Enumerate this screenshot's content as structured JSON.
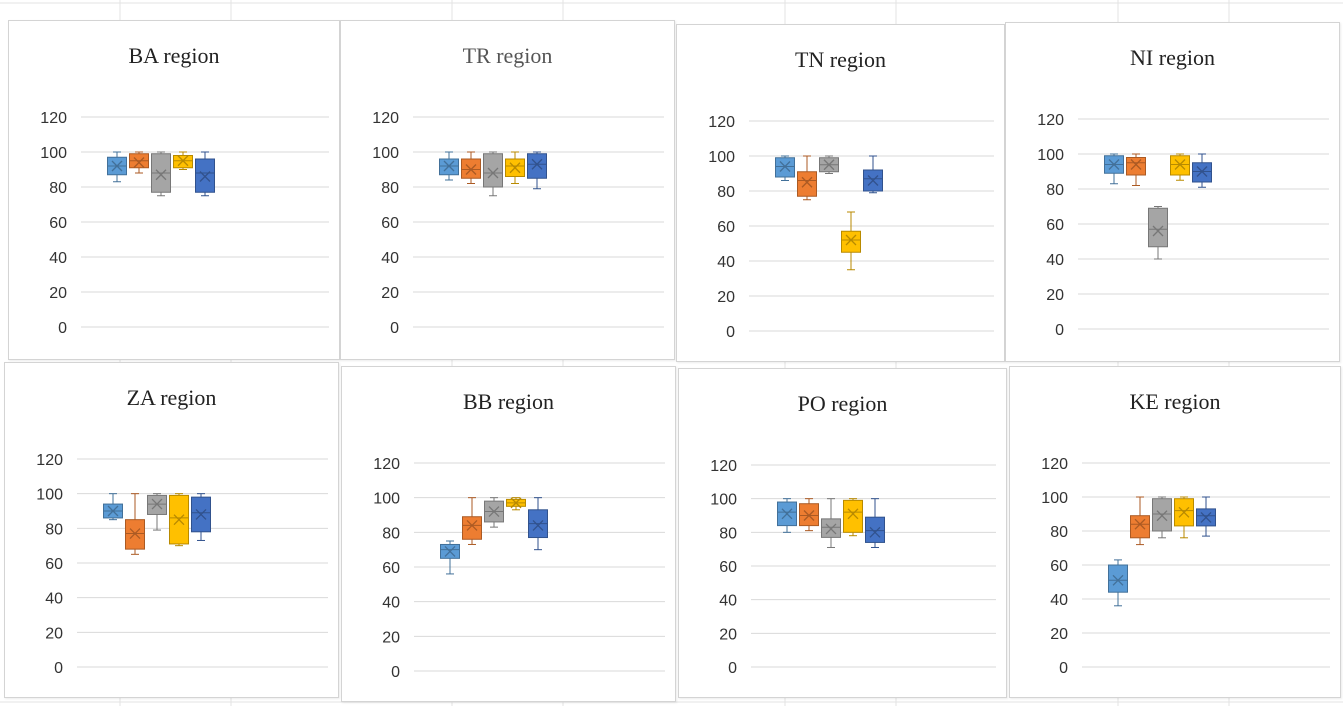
{
  "colors": {
    "s1": "#5b9bd5",
    "s2": "#ed7d31",
    "s3": "#a5a5a5",
    "s4": "#ffc000",
    "s5": "#4472c4",
    "gridline": "#d9d9d9",
    "sheet_gridline": "#e3e3e3"
  },
  "chart_data": [
    {
      "type": "boxplot",
      "title": "BA region",
      "yticks": [
        "0",
        "20",
        "40",
        "60",
        "80",
        "100",
        "120"
      ],
      "ylim": [
        0,
        120
      ],
      "series": [
        {
          "color_key": "s1",
          "min": 83,
          "q1": 87,
          "median": 92,
          "q3": 97,
          "max": 100,
          "mean": 92
        },
        {
          "color_key": "s2",
          "min": 88,
          "q1": 91,
          "median": 95,
          "q3": 99,
          "max": 100,
          "mean": 94
        },
        {
          "color_key": "s3",
          "min": 75,
          "q1": 77,
          "median": 88,
          "q3": 99,
          "max": 100,
          "mean": 87
        },
        {
          "color_key": "s4",
          "min": 90,
          "q1": 91,
          "median": 95,
          "q3": 98,
          "max": 100,
          "mean": 95
        },
        {
          "color_key": "s5",
          "min": 75,
          "q1": 77,
          "median": 88,
          "q3": 96,
          "max": 100,
          "mean": 86
        }
      ]
    },
    {
      "type": "boxplot",
      "title": "TR region",
      "yticks": [
        "0",
        "20",
        "40",
        "60",
        "80",
        "100",
        "120"
      ],
      "ylim": [
        0,
        120
      ],
      "series": [
        {
          "color_key": "s1",
          "min": 84,
          "q1": 87,
          "median": 92,
          "q3": 96,
          "max": 100,
          "mean": 92
        },
        {
          "color_key": "s2",
          "min": 82,
          "q1": 85,
          "median": 90,
          "q3": 96,
          "max": 100,
          "mean": 90
        },
        {
          "color_key": "s3",
          "min": 75,
          "q1": 80,
          "median": 88,
          "q3": 99,
          "max": 100,
          "mean": 88
        },
        {
          "color_key": "s4",
          "min": 82,
          "q1": 86,
          "median": 92,
          "q3": 96,
          "max": 100,
          "mean": 91
        },
        {
          "color_key": "s5",
          "min": 79,
          "q1": 85,
          "median": 93,
          "q3": 99,
          "max": 100,
          "mean": 93
        }
      ]
    },
    {
      "type": "boxplot",
      "title": "TN region",
      "yticks": [
        "0",
        "20",
        "40",
        "60",
        "80",
        "100",
        "120"
      ],
      "ylim": [
        0,
        120
      ],
      "series": [
        {
          "color_key": "s1",
          "min": 86,
          "q1": 88,
          "median": 94,
          "q3": 99,
          "max": 100,
          "mean": 94
        },
        {
          "color_key": "s2",
          "min": 75,
          "q1": 77,
          "median": 86,
          "q3": 91,
          "max": 100,
          "mean": 85
        },
        {
          "color_key": "s3",
          "min": 90,
          "q1": 91,
          "median": 95,
          "q3": 99,
          "max": 100,
          "mean": 95
        },
        {
          "color_key": "s4",
          "min": 35,
          "q1": 45,
          "median": 52,
          "q3": 57,
          "max": 68,
          "mean": 52
        },
        {
          "color_key": "s5",
          "min": 79,
          "q1": 80,
          "median": 87,
          "q3": 92,
          "max": 100,
          "mean": 86
        }
      ]
    },
    {
      "type": "boxplot",
      "title": "NI region",
      "yticks": [
        "0",
        "20",
        "40",
        "60",
        "80",
        "100",
        "120"
      ],
      "ylim": [
        0,
        120
      ],
      "series": [
        {
          "color_key": "s1",
          "min": 83,
          "q1": 89,
          "median": 94,
          "q3": 99,
          "max": 100,
          "mean": 94
        },
        {
          "color_key": "s2",
          "min": 82,
          "q1": 88,
          "median": 95,
          "q3": 98,
          "max": 100,
          "mean": 94
        },
        {
          "color_key": "s3",
          "min": 40,
          "q1": 47,
          "median": 57,
          "q3": 69,
          "max": 70,
          "mean": 56
        },
        {
          "color_key": "s4",
          "min": 85,
          "q1": 88,
          "median": 94,
          "q3": 99,
          "max": 100,
          "mean": 94
        },
        {
          "color_key": "s5",
          "min": 81,
          "q1": 84,
          "median": 90,
          "q3": 95,
          "max": 100,
          "mean": 90
        }
      ]
    },
    {
      "type": "boxplot",
      "title": "ZA region",
      "yticks": [
        "0",
        "20",
        "40",
        "60",
        "80",
        "100",
        "120"
      ],
      "ylim": [
        0,
        120
      ],
      "series": [
        {
          "color_key": "s1",
          "min": 85,
          "q1": 86,
          "median": 90,
          "q3": 94,
          "max": 100,
          "mean": 90
        },
        {
          "color_key": "s2",
          "min": 65,
          "q1": 68,
          "median": 77,
          "q3": 85,
          "max": 100,
          "mean": 77
        },
        {
          "color_key": "s3",
          "min": 79,
          "q1": 88,
          "median": 94,
          "q3": 99,
          "max": 100,
          "mean": 94
        },
        {
          "color_key": "s4",
          "min": 70,
          "q1": 71,
          "median": 86,
          "q3": 99,
          "max": 100,
          "mean": 85
        },
        {
          "color_key": "s5",
          "min": 73,
          "q1": 78,
          "median": 89,
          "q3": 98,
          "max": 100,
          "mean": 88
        }
      ]
    },
    {
      "type": "boxplot",
      "title": "BB region",
      "yticks": [
        "0",
        "20",
        "40",
        "60",
        "80",
        "100",
        "120"
      ],
      "ylim": [
        0,
        120
      ],
      "series": [
        {
          "color_key": "s1",
          "min": 56,
          "q1": 65,
          "median": 70,
          "q3": 73,
          "max": 75,
          "mean": 69
        },
        {
          "color_key": "s2",
          "min": 73,
          "q1": 76,
          "median": 84,
          "q3": 89,
          "max": 100,
          "mean": 84
        },
        {
          "color_key": "s3",
          "min": 83,
          "q1": 86,
          "median": 92,
          "q3": 98,
          "max": 100,
          "mean": 92
        },
        {
          "color_key": "s4",
          "min": 93,
          "q1": 95,
          "median": 97,
          "q3": 99,
          "max": 100,
          "mean": 97
        },
        {
          "color_key": "s5",
          "min": 70,
          "q1": 77,
          "median": 85,
          "q3": 93,
          "max": 100,
          "mean": 84
        }
      ]
    },
    {
      "type": "boxplot",
      "title": "PO region",
      "yticks": [
        "0",
        "20",
        "40",
        "60",
        "80",
        "100",
        "120"
      ],
      "ylim": [
        0,
        120
      ],
      "series": [
        {
          "color_key": "s1",
          "min": 80,
          "q1": 84,
          "median": 92,
          "q3": 98,
          "max": 100,
          "mean": 91
        },
        {
          "color_key": "s2",
          "min": 81,
          "q1": 84,
          "median": 90,
          "q3": 97,
          "max": 100,
          "mean": 90
        },
        {
          "color_key": "s3",
          "min": 71,
          "q1": 77,
          "median": 83,
          "q3": 88,
          "max": 100,
          "mean": 82
        },
        {
          "color_key": "s4",
          "min": 78,
          "q1": 80,
          "median": 92,
          "q3": 99,
          "max": 100,
          "mean": 91
        },
        {
          "color_key": "s5",
          "min": 71,
          "q1": 74,
          "median": 81,
          "q3": 89,
          "max": 100,
          "mean": 80
        }
      ]
    },
    {
      "type": "boxplot",
      "title": "KE region",
      "yticks": [
        "0",
        "20",
        "40",
        "60",
        "80",
        "100",
        "120"
      ],
      "ylim": [
        0,
        120
      ],
      "series": [
        {
          "color_key": "s1",
          "min": 36,
          "q1": 44,
          "median": 51,
          "q3": 60,
          "max": 63,
          "mean": 51
        },
        {
          "color_key": "s2",
          "min": 72,
          "q1": 76,
          "median": 84,
          "q3": 89,
          "max": 100,
          "mean": 84
        },
        {
          "color_key": "s3",
          "min": 76,
          "q1": 80,
          "median": 90,
          "q3": 99,
          "max": 100,
          "mean": 89
        },
        {
          "color_key": "s4",
          "min": 76,
          "q1": 83,
          "median": 92,
          "q3": 99,
          "max": 100,
          "mean": 91
        },
        {
          "color_key": "s5",
          "min": 77,
          "q1": 83,
          "median": 89,
          "q3": 93,
          "max": 100,
          "mean": 88
        }
      ]
    }
  ]
}
